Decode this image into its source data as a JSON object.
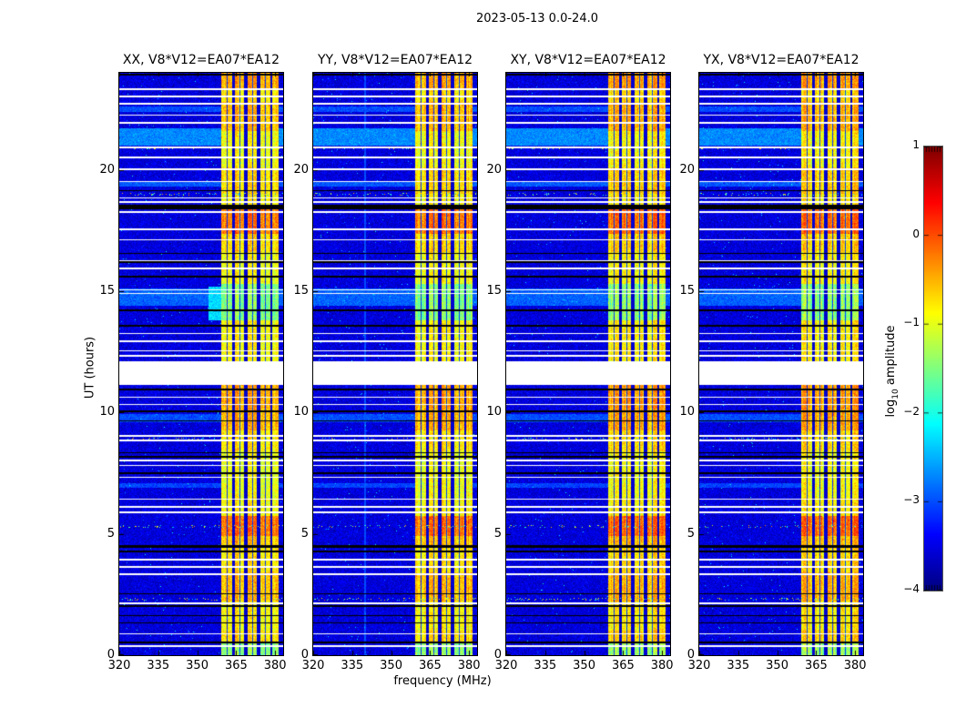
{
  "chart_data": {
    "type": "heatmap",
    "title": "2023-05-13 0.0-24.0",
    "xlabel": "frequency (MHz)",
    "ylabel": "UT (hours)",
    "xlim": [
      320,
      383.1
    ],
    "ylim": [
      0,
      24
    ],
    "xticks": [
      320,
      335,
      350,
      365,
      380
    ],
    "yticks": [
      0,
      5,
      10,
      15,
      20
    ],
    "grid": false,
    "panels": [
      {
        "label": "XX, V8*V12=EA07*EA12"
      },
      {
        "label": "YY, V8*V12=EA07*EA12"
      },
      {
        "label": "XY, V8*V12=EA07*EA12"
      },
      {
        "label": "YX, V8*V12=EA07*EA12"
      }
    ],
    "colorbar": {
      "label_prefix": "log",
      "label_sub": "10",
      "label_suffix": " amplitude",
      "tick_labels": [
        "1",
        "0",
        "−1",
        "−2",
        "−3",
        "−4"
      ],
      "tick_values": [
        1,
        0,
        -1,
        -2,
        -3,
        -4
      ],
      "vmin": -4,
      "vmax": 1,
      "colormap": "jet",
      "position": "right"
    },
    "colors": {
      "background_noise": "#0010c8",
      "rfi_band_typical": "#ffd000",
      "rfi_band_strong": "#e03000",
      "flagged_white": "#ffffff",
      "flagged_black": "#000000"
    },
    "features": {
      "noise_floor": -3.55,
      "rfi_subbands_mhz": [
        [
          359.2,
          363.6
        ],
        [
          364.4,
          368.2
        ],
        [
          369.4,
          373.0
        ],
        [
          374.2,
          378.3
        ],
        [
          379.0,
          381.4
        ]
      ],
      "dark_columns_mhz": [
        361.4,
        366.3,
        371.2,
        376.1
      ],
      "band_profile_hours_level": [
        [
          23.3,
          24.0,
          -0.45
        ],
        [
          22.8,
          23.3,
          -0.75
        ],
        [
          21.6,
          22.8,
          -0.55
        ],
        [
          20.1,
          21.6,
          -0.9
        ],
        [
          19.0,
          20.1,
          -0.7
        ],
        [
          18.55,
          19.0,
          -0.85
        ],
        [
          17.35,
          18.38,
          -0.22
        ],
        [
          16.6,
          17.35,
          -0.7
        ],
        [
          15.3,
          16.6,
          -0.9
        ],
        [
          13.8,
          15.3,
          -1.45
        ],
        [
          12.12,
          13.8,
          -0.85
        ],
        [
          11.12,
          12.12,
          -0.9
        ],
        [
          10.15,
          11.12,
          -0.45
        ],
        [
          9.25,
          10.15,
          -0.5
        ],
        [
          8.4,
          9.25,
          -0.75
        ],
        [
          6.5,
          8.4,
          -0.95
        ],
        [
          5.75,
          6.5,
          -0.85
        ],
        [
          4.9,
          5.75,
          -0.18
        ],
        [
          4.5,
          4.9,
          -0.6
        ],
        [
          3.4,
          4.5,
          -0.75
        ],
        [
          2.2,
          3.4,
          -0.55
        ],
        [
          1.0,
          2.2,
          -0.85
        ],
        [
          0.5,
          1.0,
          -0.7
        ],
        [
          0.0,
          0.5,
          -1.4
        ]
      ],
      "white_rows_hours": [
        [
          11.12,
          12.12
        ],
        [
          23.3,
          23.37
        ],
        [
          23.0,
          23.06
        ],
        [
          22.69,
          22.75
        ],
        [
          22.22,
          22.28
        ],
        [
          21.9,
          21.96
        ],
        [
          20.89,
          20.95
        ],
        [
          20.49,
          20.55
        ],
        [
          19.99,
          20.05
        ],
        [
          19.49,
          19.55
        ],
        [
          18.82,
          18.88
        ],
        [
          18.64,
          18.7
        ],
        [
          18.22,
          18.29
        ],
        [
          17.52,
          17.58
        ],
        [
          17.09,
          17.15
        ],
        [
          16.22,
          16.28
        ],
        [
          15.9,
          15.96
        ],
        [
          15.02,
          15.08
        ],
        [
          14.87,
          14.93
        ],
        [
          13.22,
          13.28
        ],
        [
          12.9,
          12.96
        ],
        [
          12.52,
          12.58
        ],
        [
          12.3,
          12.36
        ],
        [
          10.6,
          10.66
        ],
        [
          10.3,
          10.36
        ],
        [
          9.0,
          9.06
        ],
        [
          8.82,
          8.88
        ],
        [
          8.0,
          8.06
        ],
        [
          7.79,
          7.85
        ],
        [
          7.3,
          7.36
        ],
        [
          6.4,
          6.46
        ],
        [
          6.09,
          6.15
        ],
        [
          5.85,
          5.91
        ],
        [
          3.9,
          3.96
        ],
        [
          3.6,
          3.66
        ],
        [
          3.3,
          3.36
        ],
        [
          2.1,
          2.16
        ],
        [
          0.85,
          0.91
        ],
        [
          0.34,
          0.4
        ]
      ],
      "black_rows_hours": [
        [
          18.38,
          18.55
        ],
        [
          4.42,
          4.52
        ],
        [
          23.9,
          23.96
        ],
        [
          19.12,
          19.18
        ],
        [
          16.52,
          16.58
        ],
        [
          16.17,
          16.23
        ],
        [
          15.57,
          15.63
        ],
        [
          14.19,
          14.25
        ],
        [
          13.55,
          13.61
        ],
        [
          10.92,
          10.98
        ],
        [
          10.02,
          10.08
        ],
        [
          9.62,
          9.68
        ],
        [
          8.32,
          8.38
        ],
        [
          8.15,
          8.21
        ],
        [
          7.47,
          7.53
        ],
        [
          4.25,
          4.31
        ],
        [
          2.5,
          2.56
        ],
        [
          2.0,
          2.06
        ],
        [
          1.6,
          1.66
        ],
        [
          1.3,
          1.36
        ],
        [
          0.5,
          0.56
        ]
      ],
      "bg_streaks_hours_level": [
        [
          21.0,
          21.7,
          -2.7
        ],
        [
          19.3,
          19.55,
          -2.95
        ],
        [
          14.4,
          15.1,
          -2.9
        ],
        [
          9.6,
          9.95,
          -3.0
        ],
        [
          22.4,
          22.6,
          -3.0
        ],
        [
          6.9,
          7.1,
          -3.05
        ]
      ],
      "speckle_rows_hours": [
        20.9,
        8.9,
        5.3,
        2.3,
        19.0
      ],
      "panel_variations": {
        "yy_vertical_line_mhz": 340,
        "xx_cyan_patch": {
          "hours": [
            13.8,
            15.2
          ],
          "mhz": [
            354.5,
            359.2
          ],
          "level": -2.3
        },
        "seeds": [
          101,
          202,
          303,
          404
        ]
      }
    }
  }
}
